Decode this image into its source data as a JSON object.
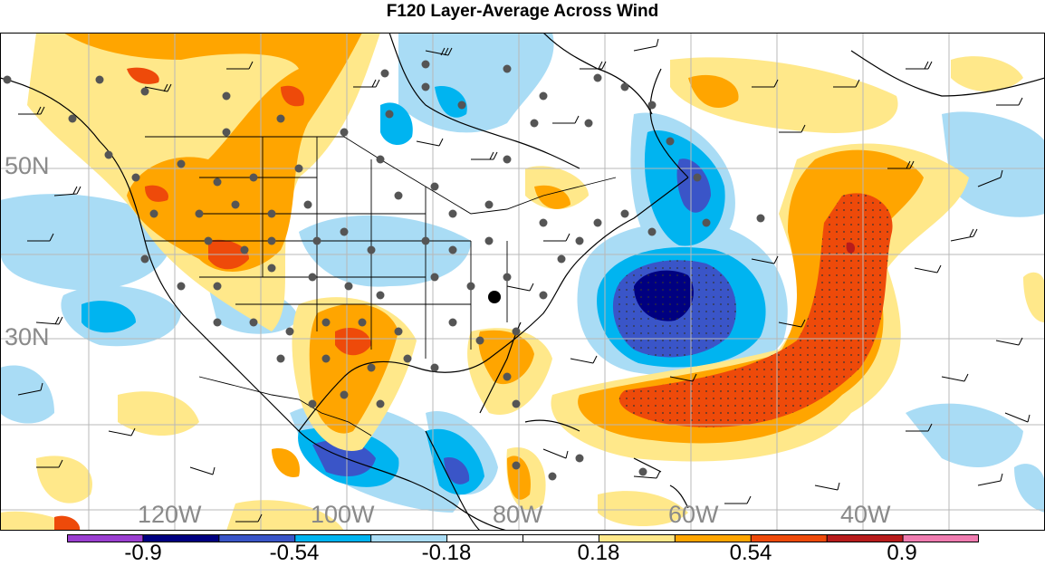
{
  "title": "F120 Layer-Average Across Wind",
  "map": {
    "lat_labels": [
      "50N",
      "30N"
    ],
    "lon_labels": [
      "120W",
      "100W",
      "80W",
      "60W",
      "40W"
    ]
  },
  "colorbar": {
    "labels": [
      "-0.9",
      "-0.54",
      "-0.18",
      "0.18",
      "0.54",
      "0.9"
    ],
    "colors": [
      "#9b3fd0",
      "#000080",
      "#3a55c8",
      "#00b4f0",
      "#a9dcf5",
      "#ffffff",
      "#ffffff",
      "#ffe88a",
      "#ffa500",
      "#ee4a0a",
      "#b81b1b",
      "#f07cb0"
    ]
  }
}
